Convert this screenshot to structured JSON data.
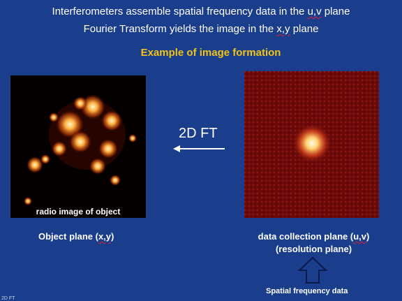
{
  "header": {
    "line1_prefix": "Interferometers assemble spatial frequency data in the ",
    "line1_emph": "u,v",
    "line1_suffix": " plane",
    "line2_prefix": "Fourier Transform yields the image in the ",
    "line2_emph": "x,y",
    "line2_suffix": " plane",
    "subtitle": "Example of image formation"
  },
  "object_panel": {
    "caption": "radio image of object",
    "label_prefix": "Object plane (",
    "label_emph": "x,y",
    "label_suffix": ")"
  },
  "transform": {
    "label": "2D FT"
  },
  "data_panel": {
    "label_prefix": "data collection plane (",
    "label_emph": "u,v",
    "label_suffix": ")",
    "sublabel": "(resolution plane)",
    "arrow_caption": "Spatial frequency data"
  },
  "footer": {
    "stub": "2D FT"
  },
  "colors": {
    "background": "#1a3d8c",
    "subtitle": "#f0c419",
    "text": "#ffffff",
    "object_glow": "#ffb040",
    "data_field": "#6e0a0a"
  }
}
